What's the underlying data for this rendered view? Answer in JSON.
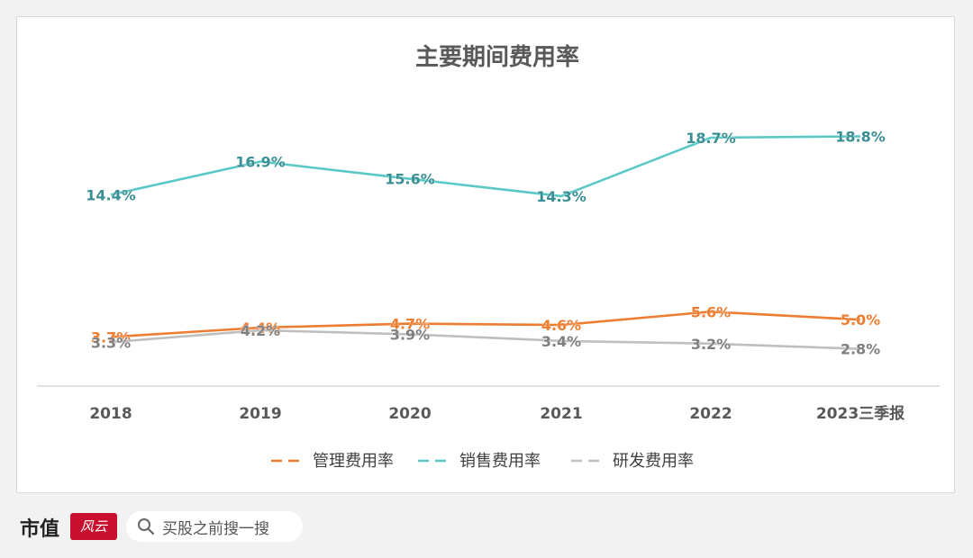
{
  "chart_data": {
    "type": "line",
    "title": "主要期间费用率",
    "categories": [
      "2018",
      "2019",
      "2020",
      "2021",
      "2022",
      "2023三季报"
    ],
    "series": [
      {
        "name": "管理费用率",
        "color": "#ed7d31",
        "values": [
          3.7,
          4.4,
          4.7,
          4.6,
          5.6,
          5.0
        ],
        "labels": [
          "3.7%",
          "4.4%",
          "4.7%",
          "4.6%",
          "5.6%",
          "5.0%"
        ]
      },
      {
        "name": "销售费用率",
        "color": "#5bc8c8",
        "values": [
          14.4,
          16.9,
          15.6,
          14.3,
          18.7,
          18.8
        ],
        "labels": [
          "14.4%",
          "16.9%",
          "15.6%",
          "14.3%",
          "18.7%",
          "18.8%"
        ]
      },
      {
        "name": "研发费用率",
        "color": "#bfbfbf",
        "values": [
          3.3,
          4.2,
          3.9,
          3.4,
          3.2,
          2.8
        ],
        "labels": [
          "3.3%",
          "4.2%",
          "3.9%",
          "3.4%",
          "3.2%",
          "2.8%"
        ]
      }
    ],
    "ylim": [
      0,
      21
    ],
    "grid": false,
    "legend": "bottom",
    "xlabel": "",
    "ylabel": ""
  },
  "footer": {
    "brand": "市值",
    "logo_text": "风云",
    "search_text": "买股之前搜一搜"
  },
  "colors": {
    "axis": "#d9d9d9",
    "label": "#595959",
    "title": "#595959"
  }
}
